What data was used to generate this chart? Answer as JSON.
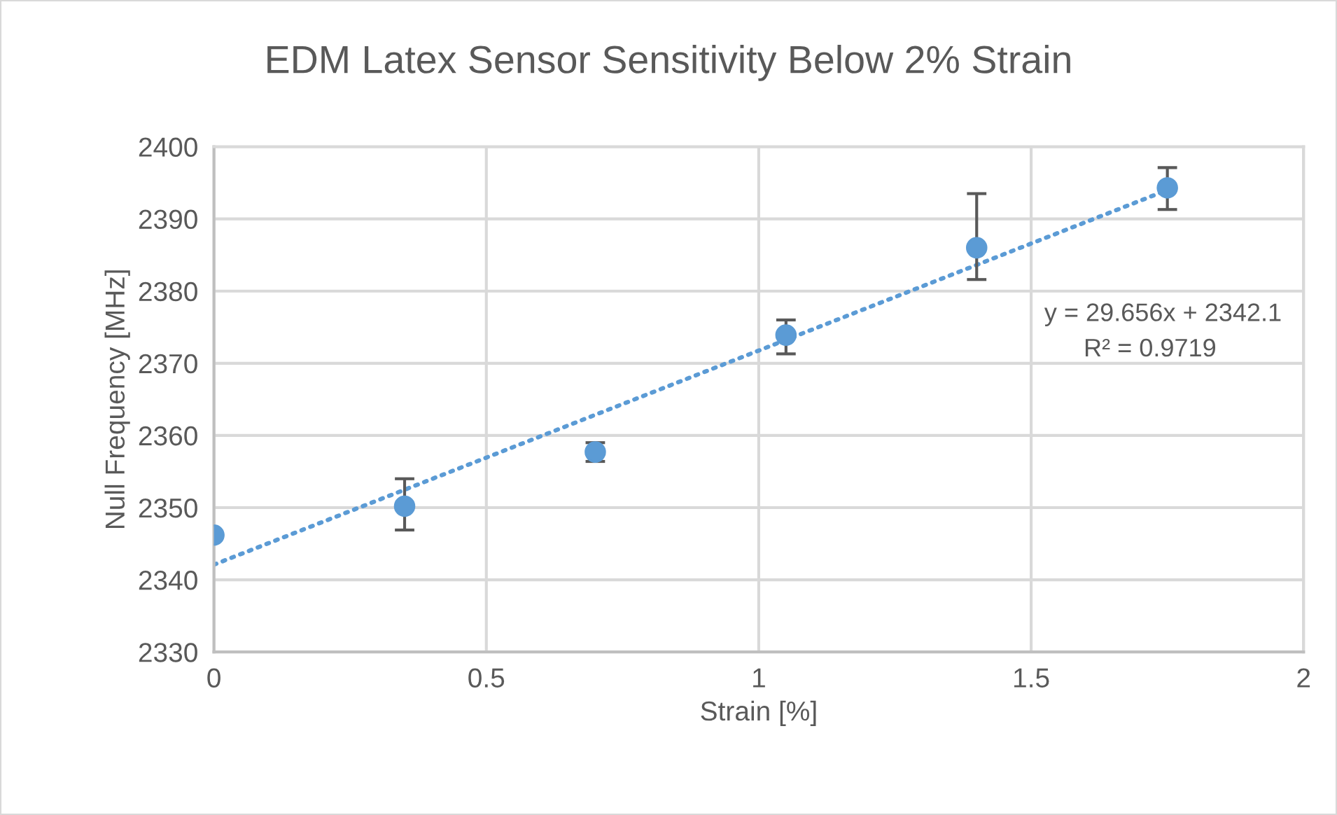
{
  "chart_data": {
    "type": "scatter",
    "title": "EDM Latex Sensor Sensitivity Below 2% Strain",
    "xlabel": "Strain [%]",
    "ylabel": "Null Frequency [MHz]",
    "xlim": [
      0,
      2
    ],
    "xticks": [
      0,
      0.5,
      1,
      1.5,
      2
    ],
    "ylim": [
      2330,
      2400
    ],
    "yticks": [
      2330,
      2340,
      2350,
      2360,
      2370,
      2380,
      2390,
      2400
    ],
    "grid": true,
    "legend": false,
    "series": [
      {
        "color": "#5b9bd5",
        "marker": "circle",
        "x": [
          0,
          0.35,
          0.7,
          1.05,
          1.4,
          1.75
        ],
        "values": [
          2346.2,
          2350.2,
          2357.7,
          2373.9,
          2386.0,
          2394.3
        ],
        "errors": [
          null,
          [
            2346.9,
            2354.0
          ],
          [
            2356.4,
            2359.0
          ],
          [
            2371.3,
            2376.0
          ],
          [
            2381.6,
            2393.5
          ],
          [
            2391.3,
            2397.1
          ]
        ]
      },
      {
        "type": "line",
        "color": "#5b9bd5",
        "line_style": "dotted",
        "marker": "none",
        "x": [
          0,
          1.75
        ],
        "values": [
          2342.1,
          2394.0
        ]
      }
    ],
    "annotations": [
      "y = 29.656x + 2342.1",
      "R² = 0.9719"
    ]
  }
}
